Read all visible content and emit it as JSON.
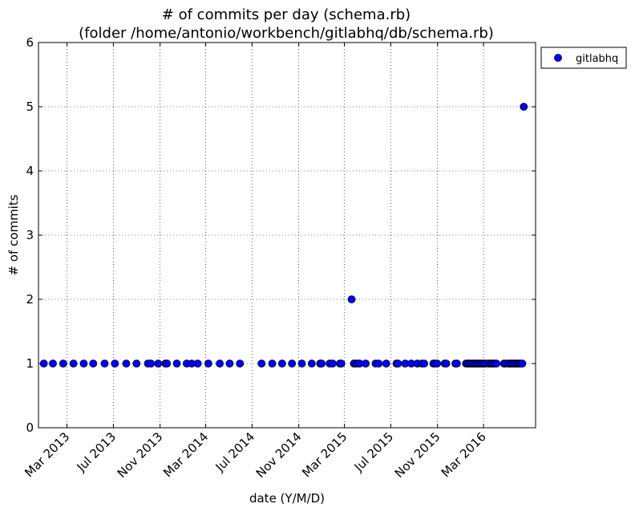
{
  "chart_data": {
    "type": "scatter",
    "title": "# of commits per day (schema.rb)",
    "subtitle": "(folder /home/antonio/workbench/gitlabhq/db/schema.rb)",
    "xlabel": "date (Y/M/D)",
    "ylabel": "# of commits",
    "ylim": [
      0,
      6
    ],
    "yticks": [
      "0",
      "1",
      "2",
      "3",
      "4",
      "5",
      "6"
    ],
    "xlim": [
      "2012-12-16",
      "2016-07-16"
    ],
    "xticks": [
      {
        "date": "2013-03-01",
        "label": "Mar 2013"
      },
      {
        "date": "2013-07-01",
        "label": "Jul 2013"
      },
      {
        "date": "2013-11-01",
        "label": "Nov 2013"
      },
      {
        "date": "2014-03-01",
        "label": "Mar 2014"
      },
      {
        "date": "2014-07-01",
        "label": "Jul 2014"
      },
      {
        "date": "2014-11-01",
        "label": "Nov 2014"
      },
      {
        "date": "2015-03-01",
        "label": "Mar 2015"
      },
      {
        "date": "2015-07-01",
        "label": "Jul 2015"
      },
      {
        "date": "2015-11-01",
        "label": "Nov 2015"
      },
      {
        "date": "2016-03-01",
        "label": "Mar 2016"
      }
    ],
    "grid": true,
    "legend_position": "outside-top-right",
    "series": [
      {
        "name": "gitlabhq",
        "color": "#0000ff",
        "points": [
          [
            "2012-12-30",
            1
          ],
          [
            "2013-01-23",
            1
          ],
          [
            "2013-02-19",
            1
          ],
          [
            "2013-03-18",
            1
          ],
          [
            "2013-04-14",
            1
          ],
          [
            "2013-05-09",
            1
          ],
          [
            "2013-06-08",
            1
          ],
          [
            "2013-07-05",
            1
          ],
          [
            "2013-08-04",
            1
          ],
          [
            "2013-08-31",
            1
          ],
          [
            "2013-09-30",
            1
          ],
          [
            "2013-10-08",
            1
          ],
          [
            "2013-10-27",
            1
          ],
          [
            "2013-11-15",
            1
          ],
          [
            "2013-11-19",
            1
          ],
          [
            "2013-12-15",
            1
          ],
          [
            "2014-01-10",
            1
          ],
          [
            "2014-01-23",
            1
          ],
          [
            "2014-02-08",
            1
          ],
          [
            "2014-03-08",
            1
          ],
          [
            "2014-04-07",
            1
          ],
          [
            "2014-05-03",
            1
          ],
          [
            "2014-05-30",
            1
          ],
          [
            "2014-07-26",
            1
          ],
          [
            "2014-08-23",
            1
          ],
          [
            "2014-09-18",
            1
          ],
          [
            "2014-10-14",
            1
          ],
          [
            "2014-11-09",
            1
          ],
          [
            "2014-12-05",
            1
          ],
          [
            "2014-12-27",
            1
          ],
          [
            "2014-12-31",
            1
          ],
          [
            "2015-01-21",
            1
          ],
          [
            "2015-01-29",
            1
          ],
          [
            "2015-02-17",
            1
          ],
          [
            "2015-02-21",
            1
          ],
          [
            "2015-03-20",
            2
          ],
          [
            "2015-03-26",
            1
          ],
          [
            "2015-03-30",
            1
          ],
          [
            "2015-04-05",
            1
          ],
          [
            "2015-04-10",
            1
          ],
          [
            "2015-04-26",
            1
          ],
          [
            "2015-05-22",
            1
          ],
          [
            "2015-05-30",
            1
          ],
          [
            "2015-06-19",
            1
          ],
          [
            "2015-07-16",
            1
          ],
          [
            "2015-07-20",
            1
          ],
          [
            "2015-08-08",
            1
          ],
          [
            "2015-08-24",
            1
          ],
          [
            "2015-09-09",
            1
          ],
          [
            "2015-09-21",
            1
          ],
          [
            "2015-09-27",
            1
          ],
          [
            "2015-10-21",
            1
          ],
          [
            "2015-10-25",
            1
          ],
          [
            "2015-10-31",
            1
          ],
          [
            "2015-11-20",
            1
          ],
          [
            "2015-11-24",
            1
          ],
          [
            "2015-12-18",
            1
          ],
          [
            "2015-12-22",
            1
          ],
          [
            "2016-01-15",
            1
          ],
          [
            "2016-01-19",
            1
          ],
          [
            "2016-01-23",
            1
          ],
          [
            "2016-01-27",
            1
          ],
          [
            "2016-01-31",
            1
          ],
          [
            "2016-02-04",
            1
          ],
          [
            "2016-02-08",
            1
          ],
          [
            "2016-02-12",
            1
          ],
          [
            "2016-02-16",
            1
          ],
          [
            "2016-02-20",
            1
          ],
          [
            "2016-02-24",
            1
          ],
          [
            "2016-02-28",
            1
          ],
          [
            "2016-03-03",
            1
          ],
          [
            "2016-03-07",
            1
          ],
          [
            "2016-03-15",
            1
          ],
          [
            "2016-03-19",
            1
          ],
          [
            "2016-03-23",
            1
          ],
          [
            "2016-03-27",
            1
          ],
          [
            "2016-03-31",
            1
          ],
          [
            "2016-04-04",
            1
          ],
          [
            "2016-04-24",
            1
          ],
          [
            "2016-04-28",
            1
          ],
          [
            "2016-05-06",
            1
          ],
          [
            "2016-05-10",
            1
          ],
          [
            "2016-05-14",
            1
          ],
          [
            "2016-05-18",
            1
          ],
          [
            "2016-05-22",
            1
          ],
          [
            "2016-05-26",
            1
          ],
          [
            "2016-05-30",
            1
          ],
          [
            "2016-06-03",
            1
          ],
          [
            "2016-06-07",
            1
          ],
          [
            "2016-06-11",
            1
          ],
          [
            "2016-06-15",
            5
          ]
        ]
      }
    ]
  }
}
